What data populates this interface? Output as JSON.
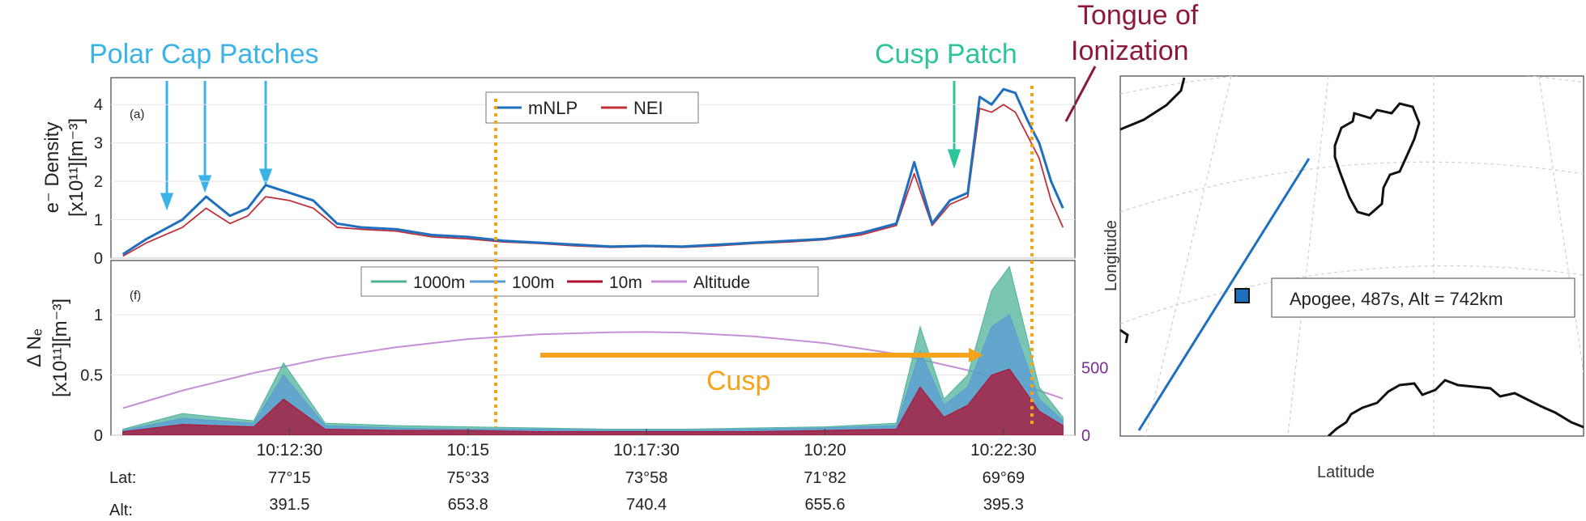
{
  "annotations": {
    "polar_cap_patches": "Polar Cap Patches",
    "cusp_patch": "Cusp Patch",
    "tongue_line1": "Tongue of",
    "tongue_line2": "Ionization",
    "cusp": "Cusp"
  },
  "colors": {
    "mnlp": "#1f6fbf",
    "nei": "#c0303a",
    "m1000": "#4fb39a",
    "m100": "#5a9bd5",
    "m10": "#b01030",
    "altitude": "#c590d6",
    "polar_cap": "#3ab4e8",
    "cusp_patch": "#2ec49a",
    "tongue": "#8b1a3a",
    "cusp_orange": "#f5a31a",
    "right_axis": "#7b2d8e"
  },
  "bottom_rows": {
    "lat_label": "Lat:",
    "alt_label": "Alt:",
    "lat_values": [
      "77°15",
      "75°33",
      "73°58",
      "71°82",
      "69°69"
    ],
    "alt_values": [
      "391.5",
      "653.8",
      "740.4",
      "655.6",
      "395.3"
    ]
  },
  "chart_data": [
    {
      "type": "line",
      "panel_label": "(a)",
      "ylabel_line1": "e⁻ Density",
      "ylabel_line2": "[x10¹¹][m⁻³]",
      "ylim": [
        0,
        4.7
      ],
      "yticks": [
        0,
        1,
        2,
        3,
        4
      ],
      "legend": [
        "mNLP",
        "NEI"
      ],
      "legend_position": "top-center",
      "series": [
        {
          "name": "mNLP",
          "x": [
            "10:10:10",
            "10:10:30",
            "10:11:00",
            "10:11:20",
            "10:11:40",
            "10:11:55",
            "10:12:10",
            "10:12:30",
            "10:12:50",
            "10:13:10",
            "10:13:30",
            "10:14:00",
            "10:14:30",
            "10:15:00",
            "10:15:30",
            "10:16:00",
            "10:16:30",
            "10:17:00",
            "10:17:30",
            "10:18:00",
            "10:18:30",
            "10:19:00",
            "10:19:30",
            "10:20:00",
            "10:20:30",
            "10:21:00",
            "10:21:15",
            "10:21:30",
            "10:21:45",
            "10:22:00",
            "10:22:10",
            "10:22:20",
            "10:22:30",
            "10:22:40",
            "10:22:50",
            "10:23:00",
            "10:23:10",
            "10:23:20"
          ],
          "values": [
            0.1,
            0.5,
            1.0,
            1.6,
            1.1,
            1.3,
            1.9,
            1.7,
            1.5,
            0.9,
            0.8,
            0.75,
            0.6,
            0.55,
            0.45,
            0.4,
            0.35,
            0.3,
            0.32,
            0.3,
            0.35,
            0.4,
            0.45,
            0.5,
            0.65,
            0.9,
            2.5,
            0.9,
            1.5,
            1.7,
            4.2,
            4.0,
            4.4,
            4.3,
            3.6,
            3.0,
            2.0,
            1.3
          ]
        },
        {
          "name": "NEI",
          "x": [
            "10:10:10",
            "10:10:30",
            "10:11:00",
            "10:11:20",
            "10:11:40",
            "10:11:55",
            "10:12:10",
            "10:12:30",
            "10:12:50",
            "10:13:10",
            "10:13:30",
            "10:14:00",
            "10:14:30",
            "10:15:00",
            "10:15:30",
            "10:16:00",
            "10:16:30",
            "10:17:00",
            "10:17:30",
            "10:18:00",
            "10:18:30",
            "10:19:00",
            "10:19:30",
            "10:20:00",
            "10:20:30",
            "10:21:00",
            "10:21:15",
            "10:21:30",
            "10:21:45",
            "10:22:00",
            "10:22:10",
            "10:22:20",
            "10:22:30",
            "10:22:40",
            "10:22:50",
            "10:23:00",
            "10:23:10",
            "10:23:20"
          ],
          "values": [
            0.05,
            0.4,
            0.8,
            1.3,
            0.9,
            1.1,
            1.6,
            1.5,
            1.3,
            0.8,
            0.75,
            0.7,
            0.55,
            0.5,
            0.42,
            0.38,
            0.32,
            0.28,
            0.3,
            0.28,
            0.32,
            0.38,
            0.42,
            0.48,
            0.6,
            0.85,
            2.2,
            0.85,
            1.4,
            1.6,
            3.9,
            3.8,
            4.0,
            3.8,
            3.2,
            2.6,
            1.5,
            0.8
          ]
        }
      ]
    },
    {
      "type": "line",
      "panel_label": "(f)",
      "ylabel_line1": "Δ Nₑ",
      "ylabel_line2": "[x10¹¹][m⁻³]",
      "ylim": [
        0,
        1.45
      ],
      "yticks": [
        0,
        0.5,
        1
      ],
      "ytick_labels": [
        "0",
        "0.5",
        "1"
      ],
      "y2ticks": [
        0,
        500
      ],
      "y2lim": [
        0,
        1290
      ],
      "xtick_labels": [
        "10:12:30",
        "10:15",
        "10:17:30",
        "10:20",
        "10:22:30"
      ],
      "legend": [
        "1000m",
        "100m",
        "10m",
        "Altitude"
      ],
      "legend_position": "top-center",
      "series": [
        {
          "name": "Altitude",
          "axis": "right",
          "x": [
            "10:10:10",
            "10:11:00",
            "10:12:00",
            "10:13:00",
            "10:14:00",
            "10:15:00",
            "10:16:00",
            "10:17:00",
            "10:17:30",
            "10:18:00",
            "10:19:00",
            "10:20:00",
            "10:21:00",
            "10:22:00",
            "10:23:00",
            "10:23:20"
          ],
          "values": [
            200,
            330,
            460,
            570,
            650,
            710,
            745,
            760,
            762,
            758,
            730,
            680,
            600,
            480,
            330,
            270
          ]
        },
        {
          "name": "1000m",
          "x": [
            "10:10:10",
            "10:11:00",
            "10:12:00",
            "10:12:25",
            "10:13:00",
            "10:14:00",
            "10:15:00",
            "10:16:00",
            "10:17:00",
            "10:18:00",
            "10:19:00",
            "10:20:00",
            "10:21:00",
            "10:21:20",
            "10:21:40",
            "10:22:00",
            "10:22:20",
            "10:22:35",
            "10:23:00",
            "10:23:20"
          ],
          "values": [
            0.05,
            0.18,
            0.12,
            0.6,
            0.1,
            0.08,
            0.07,
            0.06,
            0.05,
            0.05,
            0.06,
            0.07,
            0.1,
            0.9,
            0.3,
            0.5,
            1.2,
            1.4,
            0.4,
            0.15
          ]
        },
        {
          "name": "100m",
          "x": [
            "10:10:10",
            "10:11:00",
            "10:12:00",
            "10:12:25",
            "10:13:00",
            "10:14:00",
            "10:15:00",
            "10:16:00",
            "10:17:00",
            "10:18:00",
            "10:19:00",
            "10:20:00",
            "10:21:00",
            "10:21:20",
            "10:21:40",
            "10:22:00",
            "10:22:20",
            "10:22:35",
            "10:23:00",
            "10:23:20"
          ],
          "values": [
            0.04,
            0.14,
            0.1,
            0.5,
            0.08,
            0.06,
            0.05,
            0.05,
            0.04,
            0.04,
            0.05,
            0.06,
            0.08,
            0.7,
            0.25,
            0.4,
            0.9,
            1.0,
            0.3,
            0.12
          ]
        },
        {
          "name": "10m",
          "x": [
            "10:10:10",
            "10:11:00",
            "10:12:00",
            "10:12:25",
            "10:13:00",
            "10:14:00",
            "10:15:00",
            "10:16:00",
            "10:17:00",
            "10:18:00",
            "10:19:00",
            "10:20:00",
            "10:21:00",
            "10:21:20",
            "10:21:40",
            "10:22:00",
            "10:22:20",
            "10:22:35",
            "10:23:00",
            "10:23:20"
          ],
          "values": [
            0.03,
            0.09,
            0.07,
            0.3,
            0.05,
            0.04,
            0.04,
            0.03,
            0.03,
            0.03,
            0.03,
            0.04,
            0.05,
            0.4,
            0.15,
            0.25,
            0.5,
            0.55,
            0.2,
            0.08
          ]
        }
      ]
    },
    {
      "type": "line",
      "xlabel": "Latitude",
      "ylabel": "Longitude",
      "annotation": "Apogee, 487s, Alt = 742km"
    }
  ]
}
